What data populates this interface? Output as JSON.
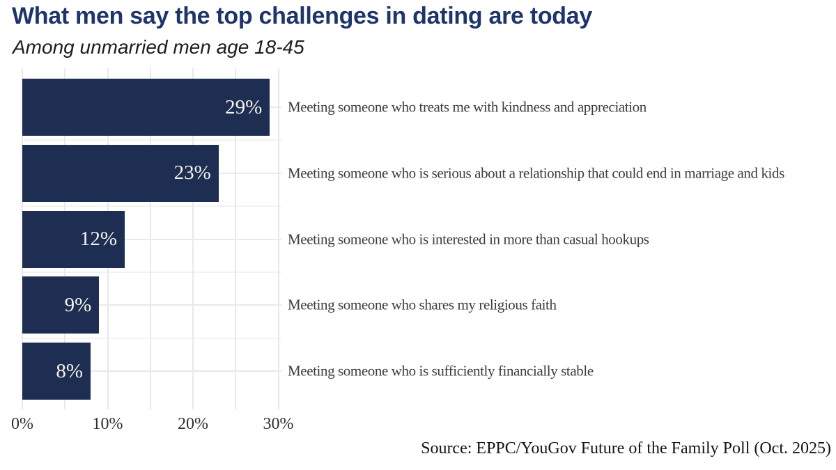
{
  "title": "What men say the top challenges in dating are today",
  "subtitle": "Among unmarried men age 18-45",
  "source": "Source: EPPC/YouGov Future of the Family Poll (Oct. 2025)",
  "colors": {
    "background": "#ffffff",
    "title": "#1f356a",
    "subtitle": "#1d1d1f",
    "bar": "#1d2e52",
    "bar_value_label": "#f7f4ec",
    "category_label": "#3d3d3f",
    "axis_label": "#2e2e30",
    "gridline_major": "#e9e9ec",
    "gridline_minor": "#f2f2f4",
    "source_text": "#141416"
  },
  "chart_data": {
    "type": "bar",
    "orientation": "horizontal",
    "title": "What men say the top challenges in dating are today",
    "subtitle": "Among unmarried men age 18-45",
    "categories": [
      "Meeting someone who treats me with kindness and appreciation",
      "Meeting someone who is serious about a relationship that could end in marriage and kids",
      "Meeting someone who is interested in more than casual hookups",
      "Meeting someone who shares my religious faith",
      "Meeting someone who is sufficiently financially stable"
    ],
    "values": [
      29,
      23,
      12,
      9,
      8
    ],
    "value_labels": [
      "29%",
      "23%",
      "12%",
      "9%",
      "8%"
    ],
    "x_axis": {
      "label": "",
      "unit": "%",
      "range": [
        0,
        30.5
      ],
      "ticks": [
        {
          "pct": 0,
          "label": "0%"
        },
        {
          "pct": 5,
          "label": ""
        },
        {
          "pct": 10,
          "label": "10%"
        },
        {
          "pct": 15,
          "label": ""
        },
        {
          "pct": 20,
          "label": "20%"
        },
        {
          "pct": 25,
          "label": ""
        },
        {
          "pct": 30,
          "label": "30%"
        }
      ]
    },
    "grid": {
      "vertical": "5% steps",
      "horizontal": "category centers + midpoints"
    },
    "legend": "none",
    "source": "Source: EPPC/YouGov Future of the Family Poll (Oct. 2025)"
  }
}
